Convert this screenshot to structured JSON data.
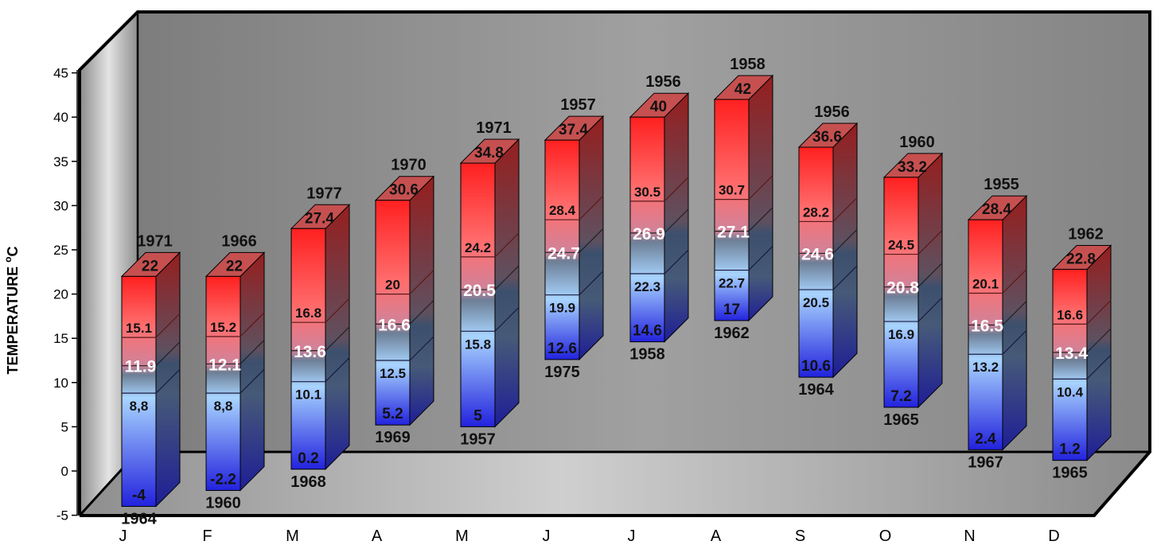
{
  "chart_data": {
    "type": "bar",
    "title": "",
    "ylabel": "TEMPERATURE",
    "ylabel_sup": "o",
    "ylabel_unit": "C",
    "ylim": [
      -5,
      45
    ],
    "yticks": [
      "-5",
      "0",
      "5",
      "10",
      "15",
      "20",
      "25",
      "30",
      "35",
      "40",
      "45"
    ],
    "categories": [
      "J",
      "F",
      "M",
      "A",
      "M",
      "J",
      "J",
      "A",
      "S",
      "O",
      "N",
      "D"
    ],
    "series": [
      {
        "values": [
          "-4",
          "-2.2",
          "0.2",
          "5.2",
          "5",
          "12.6",
          "14.6",
          "17",
          "10.6",
          "7.2",
          "2.4",
          "1.2"
        ]
      },
      {
        "values": [
          "8,8",
          "8,8",
          "10.1",
          "12.5",
          "15.8",
          "19.9",
          "22.3",
          "22.7",
          "20.5",
          "16.9",
          "13.2",
          "10.4"
        ]
      },
      {
        "values": [
          "11.9",
          "12.1",
          "13.6",
          "16.6",
          "20.5",
          "24.7",
          "26.9",
          "27.1",
          "24.6",
          "20.8",
          "16.5",
          "13.4"
        ]
      },
      {
        "values": [
          "15.1",
          "15.2",
          "16.8",
          "20",
          "24.2",
          "28.4",
          "30.5",
          "30.7",
          "28.2",
          "24.5",
          "20.1",
          "16.6"
        ]
      },
      {
        "values": [
          "22",
          "22",
          "27.4",
          "30.6",
          "34.8",
          "37.4",
          "40",
          "42",
          "36.6",
          "33.2",
          "28.4",
          "22.8"
        ]
      }
    ],
    "min_years": [
      "1964",
      "1960",
      "1968",
      "1969",
      "1957",
      "1975",
      "1958",
      "1962",
      "1964",
      "1965",
      "1967",
      "1965"
    ],
    "max_years": [
      "1971",
      "1966",
      "1977",
      "1970",
      "1971",
      "1957",
      "1956",
      "1958",
      "1956",
      "1960",
      "1955",
      "1962"
    ],
    "colors": {
      "bar_low": "#2222dd",
      "bar_mid": "#a8d4ff",
      "bar_high": "#ff2020",
      "panel": "#8c8c8c",
      "floor": "#a9a9a9"
    },
    "grid": false,
    "legend": "none"
  }
}
